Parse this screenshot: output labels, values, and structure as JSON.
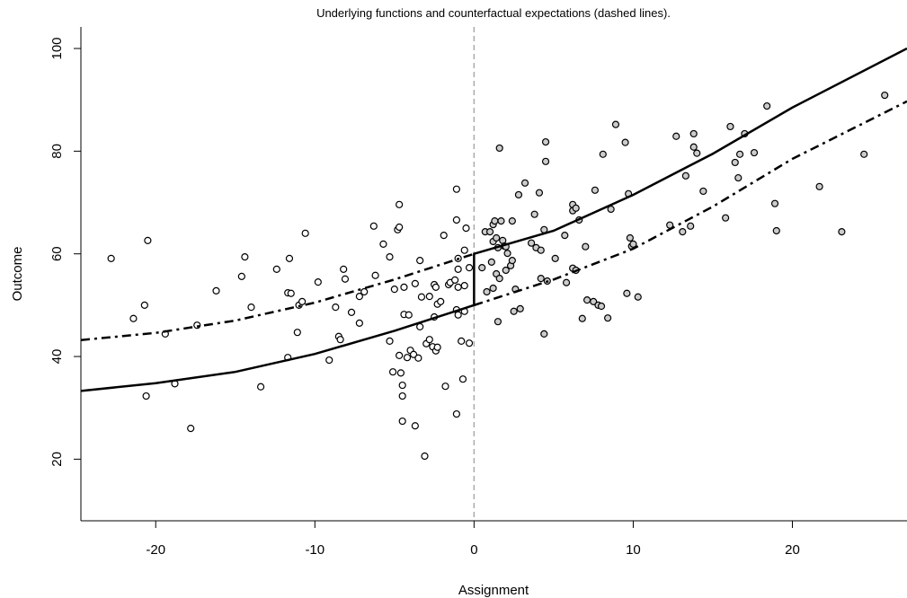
{
  "chart_data": {
    "type": "scatter",
    "title": "Underlying functions and counterfactual expectations (dashed lines).",
    "x_label": "Assignment",
    "y_label": "Outcome",
    "xlim": [
      -24.7,
      27.2
    ],
    "ylim": [
      8,
      104.2
    ],
    "xticks": [
      -20,
      -10,
      0,
      10,
      20
    ],
    "yticks": [
      20,
      40,
      60,
      80,
      100
    ],
    "cutoff": 0,
    "cutoff_color": "#aaaaaa",
    "series": [
      {
        "type": "scatter",
        "color": "#000000",
        "fill": "#ffffff",
        "x": [
          -22.8,
          -21.4,
          -20.7,
          -20.6,
          -20.5,
          -19.4,
          -18.8,
          -17.8,
          -17.4,
          -16.2,
          -14.6,
          -14.4,
          -14.0,
          -13.4,
          -12.4,
          -11.7,
          -11.6,
          -11.5,
          -11.7,
          -11.1,
          -11.0,
          -10.8,
          -10.6,
          -9.8,
          -9.1,
          -8.7,
          -8.5,
          -8.4,
          -8.2,
          -8.1,
          -7.7,
          -7.2,
          -6.9,
          -7.2,
          -6.3,
          -6.2,
          -5.7,
          -5.3,
          -5.0,
          -5.3,
          -5.1,
          -4.5,
          -4.7,
          -4.8,
          -4.7,
          -4.7,
          -4.4,
          -4.4,
          -4.5,
          -4.6,
          -4.5,
          -4.2,
          -4.0,
          -4.1,
          -3.8,
          -3.7,
          -3.7,
          -3.5,
          -3.4,
          -3.4,
          -3.3,
          -3.1,
          -3.0,
          -2.8,
          -2.8,
          -2.6,
          -2.5,
          -2.4,
          -2.5,
          -2.4,
          -2.3,
          -2.3,
          -2.1,
          -1.9,
          -1.8,
          -1.6,
          -1.5,
          -1.2,
          -1.1,
          -1.1,
          -1.1,
          -1.1,
          -1.0,
          -1.0,
          -1.0,
          -1.0,
          -0.8,
          -0.7,
          -0.6,
          -0.6,
          -0.6,
          -0.5,
          -0.3,
          -0.3
        ],
        "values": [
          59.1,
          47.4,
          50.0,
          32.3,
          62.6,
          44.4,
          34.7,
          26.0,
          46.1,
          52.8,
          55.6,
          59.4,
          49.6,
          34.1,
          57.0,
          52.4,
          59.1,
          52.3,
          39.8,
          44.7,
          50.0,
          50.7,
          64.0,
          54.5,
          39.3,
          49.6,
          43.9,
          43.3,
          57.0,
          55.1,
          48.6,
          46.5,
          52.6,
          51.7,
          65.4,
          55.8,
          61.9,
          59.4,
          53.1,
          43.0,
          37.0,
          27.4,
          40.2,
          64.7,
          69.6,
          65.2,
          53.5,
          48.2,
          32.3,
          36.8,
          34.4,
          39.8,
          41.2,
          48.1,
          40.4,
          26.5,
          54.2,
          39.7,
          45.8,
          58.7,
          51.6,
          20.6,
          42.5,
          43.3,
          51.7,
          41.9,
          54.0,
          53.5,
          47.7,
          41.1,
          50.2,
          41.8,
          50.7,
          63.6,
          34.2,
          54.0,
          54.4,
          54.9,
          28.8,
          72.6,
          66.6,
          49.1,
          59.1,
          48.1,
          53.5,
          57.0,
          43.0,
          35.6,
          48.8,
          53.8,
          60.7,
          65.0,
          42.6,
          57.3
        ]
      },
      {
        "type": "scatter",
        "color": "#000000",
        "fill": "#cccccc",
        "x": [
          0.5,
          0.7,
          0.8,
          1.0,
          1.1,
          1.2,
          1.2,
          1.2,
          1.3,
          1.4,
          1.4,
          1.5,
          1.5,
          1.6,
          1.6,
          1.7,
          1.8,
          1.9,
          2.0,
          2.0,
          2.1,
          2.3,
          2.4,
          2.4,
          2.5,
          2.6,
          2.8,
          2.9,
          3.2,
          3.6,
          3.8,
          3.9,
          4.1,
          4.2,
          4.2,
          4.4,
          4.4,
          4.5,
          4.5,
          4.6,
          5.1,
          5.7,
          5.8,
          6.2,
          6.2,
          6.2,
          6.4,
          6.4,
          6.6,
          6.8,
          7.0,
          7.1,
          7.5,
          7.6,
          7.8,
          8.0,
          8.1,
          8.4,
          8.6,
          8.9,
          9.5,
          9.6,
          9.7,
          9.8,
          9.9,
          10.0,
          10.3,
          12.3,
          12.7,
          13.1,
          13.3,
          13.6,
          13.8,
          13.8,
          14.0,
          14.4,
          15.8,
          16.1,
          16.4,
          16.6,
          16.7,
          17.0,
          17.6,
          18.4,
          18.9,
          19.0,
          21.7,
          23.1,
          24.5,
          25.8
        ],
        "values": [
          57.3,
          64.3,
          52.6,
          64.3,
          58.4,
          62.4,
          53.3,
          65.7,
          66.4,
          63.1,
          56.1,
          61.2,
          46.8,
          80.6,
          55.2,
          66.4,
          62.6,
          61.5,
          56.8,
          61.4,
          60.1,
          57.7,
          66.4,
          58.7,
          48.8,
          53.1,
          71.5,
          49.3,
          73.8,
          62.1,
          67.7,
          61.2,
          71.9,
          60.7,
          55.2,
          64.7,
          44.4,
          78.0,
          81.8,
          54.7,
          59.1,
          63.6,
          54.4,
          68.4,
          69.6,
          57.2,
          68.9,
          56.8,
          66.6,
          47.4,
          61.4,
          51.0,
          50.7,
          72.4,
          50.0,
          49.8,
          79.4,
          47.5,
          68.7,
          85.2,
          81.7,
          52.3,
          71.7,
          63.1,
          61.5,
          61.9,
          51.6,
          65.6,
          82.9,
          64.3,
          75.2,
          65.4,
          83.4,
          80.8,
          79.6,
          72.2,
          67.0,
          84.8,
          77.8,
          74.8,
          79.4,
          83.4,
          79.7,
          88.8,
          69.8,
          64.5,
          73.1,
          64.3,
          79.4,
          90.9
        ]
      },
      {
        "type": "line",
        "color": "#000000",
        "linestyle": "solid",
        "x": [
          -24.7,
          -20,
          -15,
          -10,
          -5,
          0,
          0,
          5,
          10,
          15,
          20,
          27.2
        ],
        "values": [
          33.3,
          34.8,
          37.0,
          40.5,
          45.0,
          50.0,
          60.0,
          64.5,
          71.5,
          79.5,
          88.5,
          100.0
        ]
      },
      {
        "type": "line",
        "color": "#000000",
        "linestyle": "dashdot",
        "x": [
          -24.7,
          -20,
          -15,
          -10,
          -5,
          0,
          0,
          0,
          5,
          10,
          15,
          20,
          27.2
        ],
        "values": [
          43.2,
          44.6,
          47.0,
          50.5,
          55.0,
          60.0,
          null,
          50.0,
          55.0,
          61.0,
          69.2,
          78.5,
          89.7
        ]
      }
    ]
  }
}
